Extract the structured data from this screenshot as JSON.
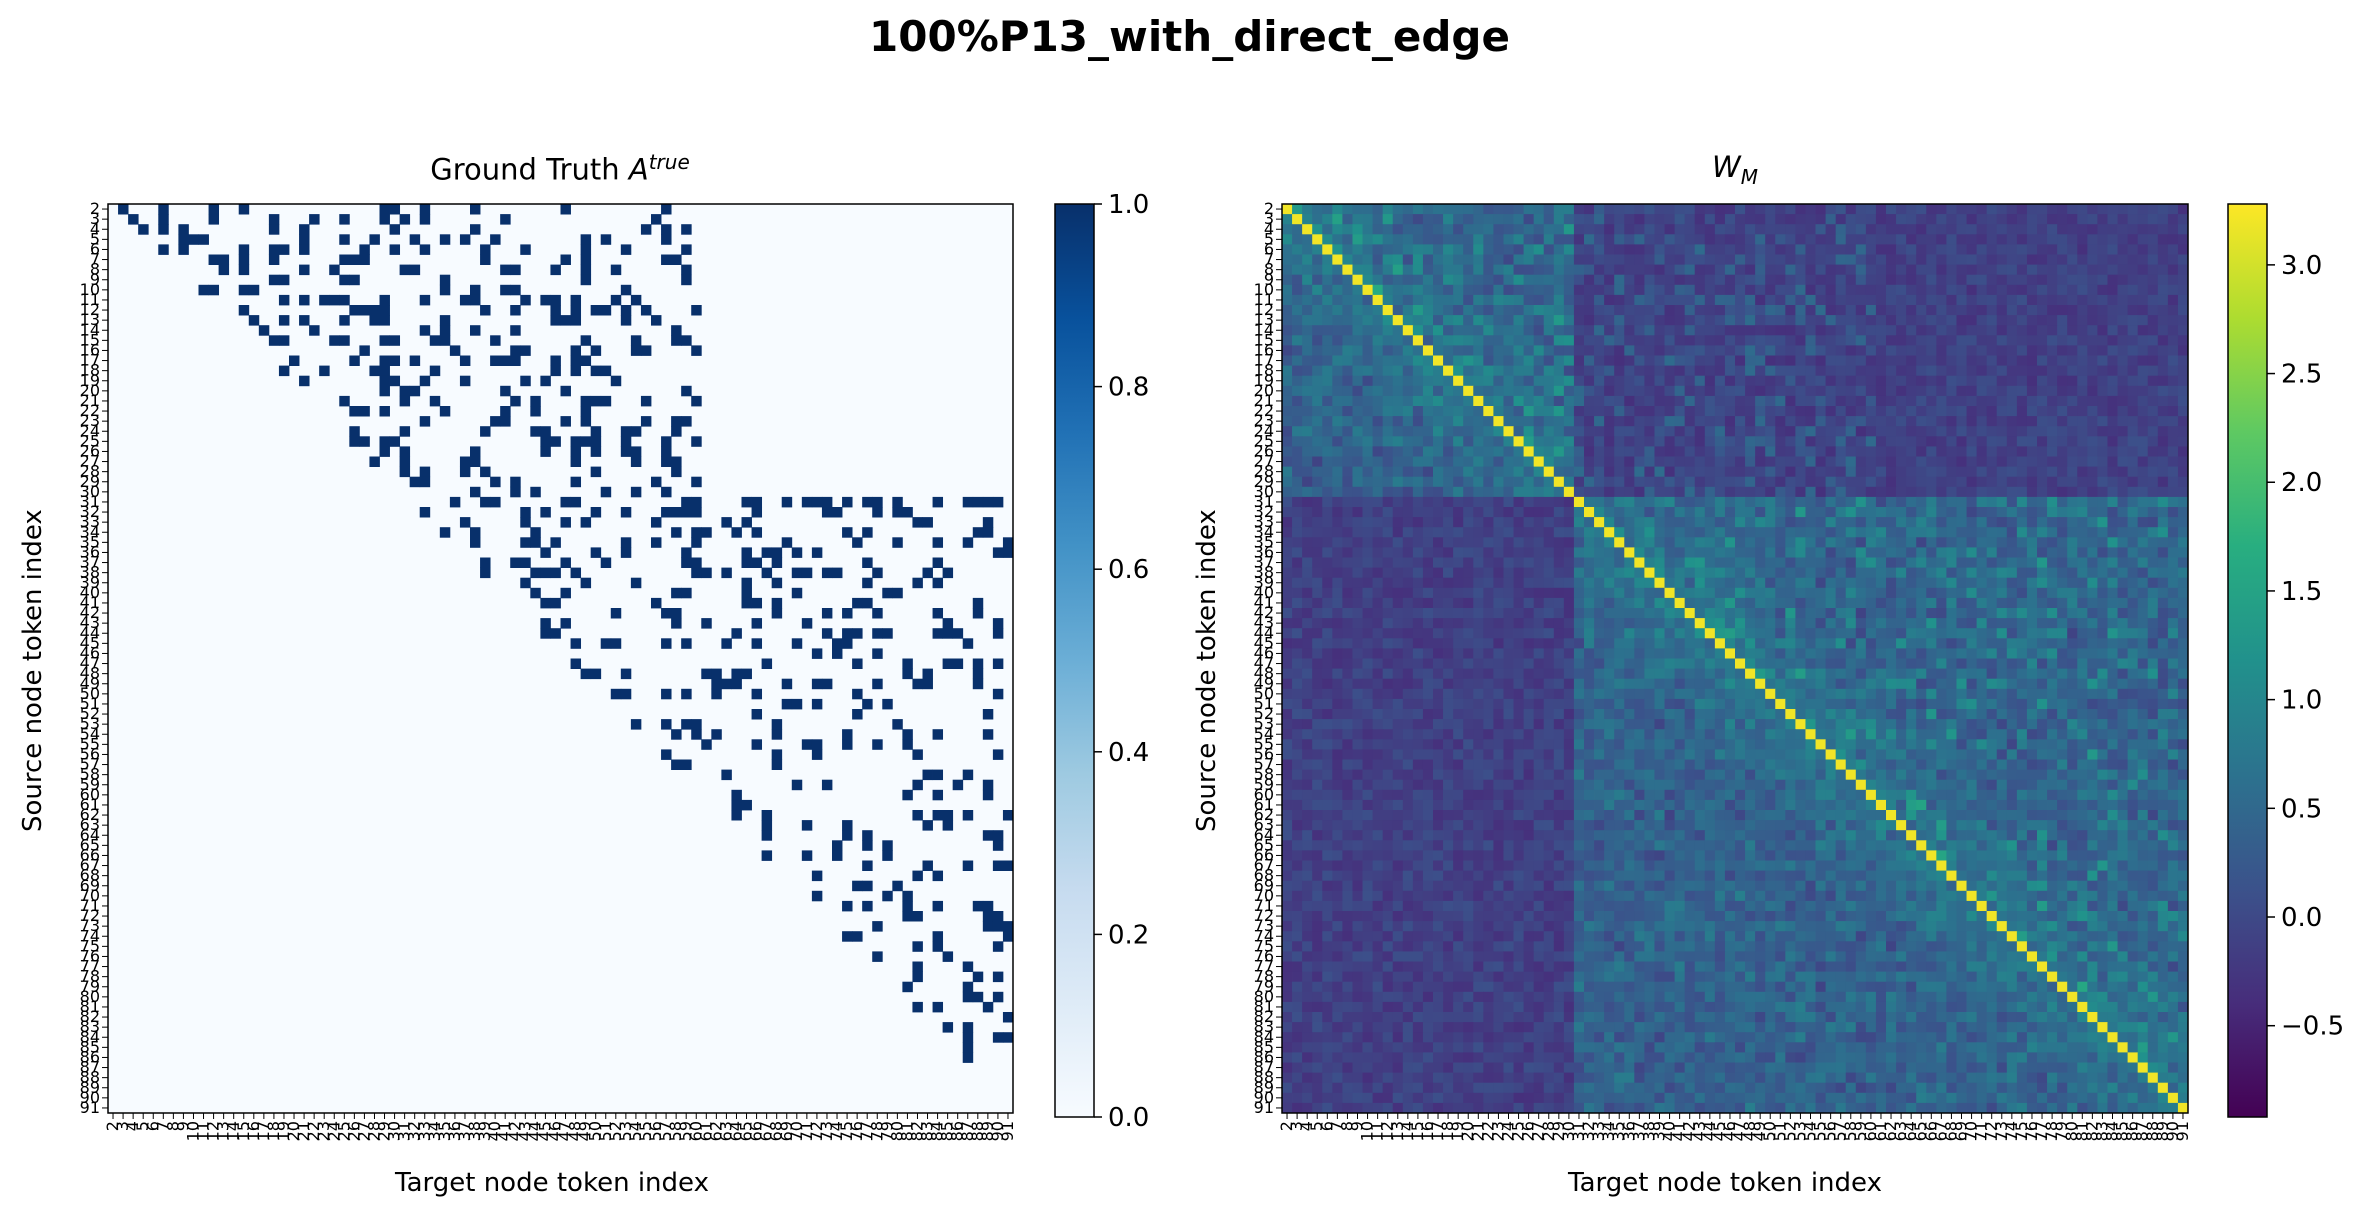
{
  "figure": {
    "title": "100%P13_with_direct_edge"
  },
  "chart_data": [
    {
      "type": "heatmap",
      "title_text": "Ground Truth ",
      "title_math": "A",
      "title_sup": "true",
      "xlabel": "Target node token index",
      "ylabel": "Source node token index",
      "index_range": [
        2,
        91
      ],
      "colormap": "Blues",
      "colorbar": {
        "range": [
          0.0,
          1.0
        ],
        "ticks": [
          "0.0",
          "0.2",
          "0.4",
          "0.6",
          "0.8",
          "1.0"
        ]
      },
      "description": "Binary adjacency, nonzero only above the diagonal; dense edges for sources 2-30 to targets up to ~60, and sources 31-85 to targets 31-91",
      "colors": {
        "zero": "#f7fbff",
        "one": "#08306b"
      }
    },
    {
      "type": "heatmap",
      "title_math": "W",
      "title_sub": "M",
      "xlabel": "Target node token index",
      "ylabel": "Source node token index",
      "index_range": [
        2,
        91
      ],
      "colormap": "viridis",
      "colorbar": {
        "range": [
          -0.92,
          3.28
        ],
        "ticks": [
          "-0.5",
          "0.0",
          "0.5",
          "1.0",
          "1.5",
          "2.0",
          "2.5",
          "3.0"
        ]
      },
      "description": "Diagonal near maximum (~3.2); elevated values in blocks 2-30 and 31-91 above the diagonal",
      "colors": {
        "diagonal": "#fde725"
      }
    }
  ]
}
